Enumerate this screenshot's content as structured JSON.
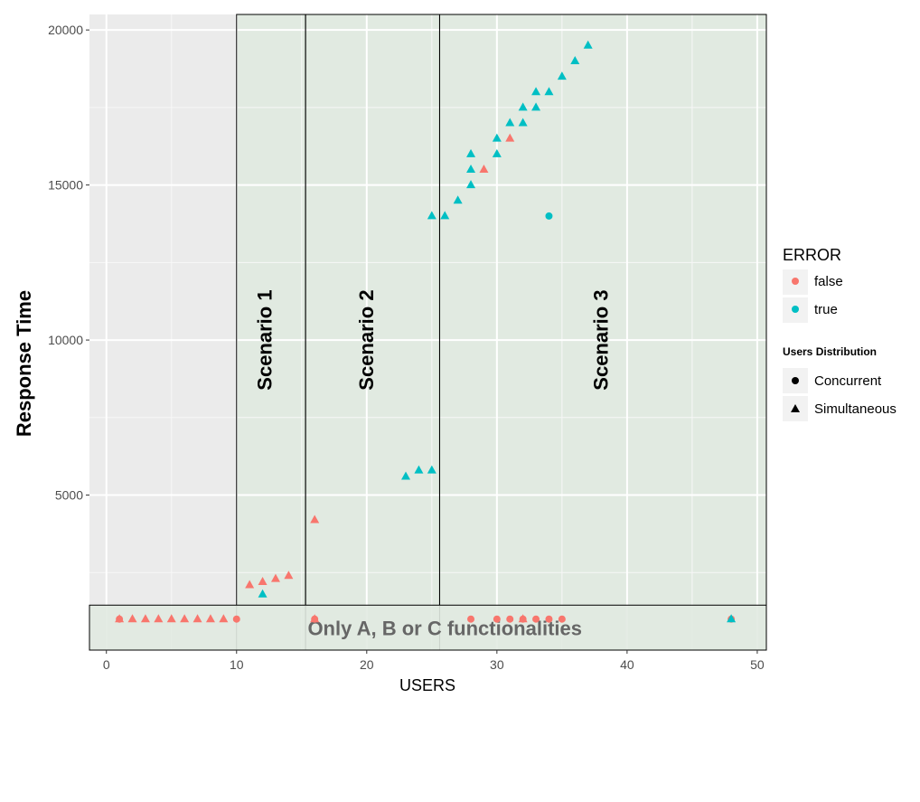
{
  "chart_data": {
    "type": "scatter",
    "xlabel": "USERS",
    "ylabel": "Response Time",
    "xlim": [
      -1.3,
      50.7
    ],
    "ylim": [
      0,
      20500
    ],
    "x_ticks": [
      0,
      10,
      20,
      30,
      40,
      50
    ],
    "y_ticks": [
      5000,
      10000,
      15000,
      20000
    ],
    "grid": true,
    "legend_placement": "right",
    "legends": {
      "color": {
        "title": "ERROR",
        "entries": [
          {
            "key": "false",
            "label": "false",
            "color": "#F8766D"
          },
          {
            "key": "true",
            "label": "true",
            "color": "#00BFC4"
          }
        ]
      },
      "shape": {
        "title": "Users Distribution",
        "entries": [
          {
            "key": "Concurrent",
            "label": "Concurrent",
            "shape": "circle"
          },
          {
            "key": "Simultaneous",
            "label": "Simultaneous",
            "shape": "triangle"
          }
        ]
      }
    },
    "regions": [
      {
        "label": "Scenario 1",
        "x": [
          10,
          15.3
        ]
      },
      {
        "label": "Scenario 2",
        "x": [
          15.3,
          25.6
        ]
      },
      {
        "label": "Scenario 3",
        "x": [
          25.6,
          50.7
        ]
      }
    ],
    "band": {
      "label": "Only A, B or C functionalities",
      "y": [
        0,
        1450
      ]
    },
    "points": [
      {
        "x": 1,
        "y": 1000,
        "error": "false",
        "dist": "Concurrent"
      },
      {
        "x": 10,
        "y": 1000,
        "error": "false",
        "dist": "Concurrent"
      },
      {
        "x": 16,
        "y": 1000,
        "error": "false",
        "dist": "Concurrent"
      },
      {
        "x": 28,
        "y": 1000,
        "error": "false",
        "dist": "Concurrent"
      },
      {
        "x": 30,
        "y": 1000,
        "error": "false",
        "dist": "Concurrent"
      },
      {
        "x": 31,
        "y": 1000,
        "error": "false",
        "dist": "Concurrent"
      },
      {
        "x": 32,
        "y": 1000,
        "error": "false",
        "dist": "Concurrent"
      },
      {
        "x": 33,
        "y": 1000,
        "error": "false",
        "dist": "Concurrent"
      },
      {
        "x": 34,
        "y": 1000,
        "error": "false",
        "dist": "Concurrent"
      },
      {
        "x": 35,
        "y": 1000,
        "error": "false",
        "dist": "Concurrent"
      },
      {
        "x": 48,
        "y": 1000,
        "error": "false",
        "dist": "Concurrent"
      },
      {
        "x": 34,
        "y": 14000,
        "error": "true",
        "dist": "Concurrent"
      },
      {
        "x": 1,
        "y": 1000,
        "error": "false",
        "dist": "Simultaneous"
      },
      {
        "x": 2,
        "y": 1000,
        "error": "false",
        "dist": "Simultaneous"
      },
      {
        "x": 3,
        "y": 1000,
        "error": "false",
        "dist": "Simultaneous"
      },
      {
        "x": 4,
        "y": 1000,
        "error": "false",
        "dist": "Simultaneous"
      },
      {
        "x": 5,
        "y": 1000,
        "error": "false",
        "dist": "Simultaneous"
      },
      {
        "x": 6,
        "y": 1000,
        "error": "false",
        "dist": "Simultaneous"
      },
      {
        "x": 7,
        "y": 1000,
        "error": "false",
        "dist": "Simultaneous"
      },
      {
        "x": 8,
        "y": 1000,
        "error": "false",
        "dist": "Simultaneous"
      },
      {
        "x": 9,
        "y": 1000,
        "error": "false",
        "dist": "Simultaneous"
      },
      {
        "x": 16,
        "y": 1000,
        "error": "false",
        "dist": "Simultaneous"
      },
      {
        "x": 32,
        "y": 1000,
        "error": "false",
        "dist": "Simultaneous"
      },
      {
        "x": 11,
        "y": 2100,
        "error": "false",
        "dist": "Simultaneous"
      },
      {
        "x": 12,
        "y": 2200,
        "error": "false",
        "dist": "Simultaneous"
      },
      {
        "x": 13,
        "y": 2300,
        "error": "false",
        "dist": "Simultaneous"
      },
      {
        "x": 14,
        "y": 2400,
        "error": "false",
        "dist": "Simultaneous"
      },
      {
        "x": 16,
        "y": 4200,
        "error": "false",
        "dist": "Simultaneous"
      },
      {
        "x": 29,
        "y": 15500,
        "error": "false",
        "dist": "Simultaneous"
      },
      {
        "x": 31,
        "y": 16500,
        "error": "false",
        "dist": "Simultaneous"
      },
      {
        "x": 12,
        "y": 1800,
        "error": "true",
        "dist": "Simultaneous"
      },
      {
        "x": 23,
        "y": 5600,
        "error": "true",
        "dist": "Simultaneous"
      },
      {
        "x": 24,
        "y": 5800,
        "error": "true",
        "dist": "Simultaneous"
      },
      {
        "x": 25,
        "y": 5800,
        "error": "true",
        "dist": "Simultaneous"
      },
      {
        "x": 25,
        "y": 14000,
        "error": "true",
        "dist": "Simultaneous"
      },
      {
        "x": 26,
        "y": 14000,
        "error": "true",
        "dist": "Simultaneous"
      },
      {
        "x": 27,
        "y": 14500,
        "error": "true",
        "dist": "Simultaneous"
      },
      {
        "x": 28,
        "y": 15000,
        "error": "true",
        "dist": "Simultaneous"
      },
      {
        "x": 28,
        "y": 15500,
        "error": "true",
        "dist": "Simultaneous"
      },
      {
        "x": 28,
        "y": 16000,
        "error": "true",
        "dist": "Simultaneous"
      },
      {
        "x": 30,
        "y": 16000,
        "error": "true",
        "dist": "Simultaneous"
      },
      {
        "x": 30,
        "y": 16500,
        "error": "true",
        "dist": "Simultaneous"
      },
      {
        "x": 31,
        "y": 17000,
        "error": "true",
        "dist": "Simultaneous"
      },
      {
        "x": 32,
        "y": 17000,
        "error": "true",
        "dist": "Simultaneous"
      },
      {
        "x": 32,
        "y": 17500,
        "error": "true",
        "dist": "Simultaneous"
      },
      {
        "x": 33,
        "y": 17500,
        "error": "true",
        "dist": "Simultaneous"
      },
      {
        "x": 33,
        "y": 18000,
        "error": "true",
        "dist": "Simultaneous"
      },
      {
        "x": 34,
        "y": 18000,
        "error": "true",
        "dist": "Simultaneous"
      },
      {
        "x": 35,
        "y": 18500,
        "error": "true",
        "dist": "Simultaneous"
      },
      {
        "x": 36,
        "y": 19000,
        "error": "true",
        "dist": "Simultaneous"
      },
      {
        "x": 37,
        "y": 19500,
        "error": "true",
        "dist": "Simultaneous"
      },
      {
        "x": 48,
        "y": 1000,
        "error": "true",
        "dist": "Simultaneous"
      }
    ]
  }
}
